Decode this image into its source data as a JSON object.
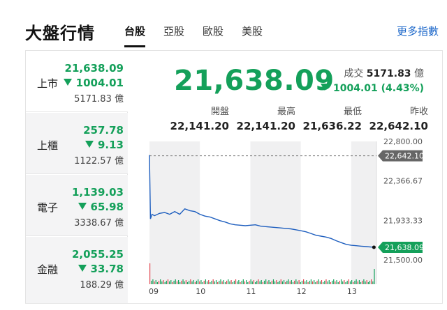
{
  "header": {
    "title": "大盤行情",
    "tabs": [
      {
        "label": "台股",
        "active": true
      },
      {
        "label": "亞股",
        "active": false
      },
      {
        "label": "歐股",
        "active": false
      },
      {
        "label": "美股",
        "active": false
      }
    ],
    "more_link": "更多指數"
  },
  "sidebar": {
    "items": [
      {
        "name": "上市",
        "value": "21,638.09",
        "change": "1004.01",
        "volume": "5171.83 億"
      },
      {
        "name": "上櫃",
        "value": "257.78",
        "change": "9.13",
        "volume": "1122.57 億"
      },
      {
        "name": "電子",
        "value": "1,139.03",
        "change": "65.98",
        "volume": "3338.67 億"
      },
      {
        "name": "金融",
        "value": "2,055.25",
        "change": "33.78",
        "volume": "188.29 億"
      }
    ]
  },
  "main": {
    "price": "21,638.09",
    "volume_label": "成交",
    "volume_value": "5171.83",
    "volume_unit": "億",
    "change": "1004.01 (4.43%)",
    "stats": [
      {
        "label": "開盤",
        "value": "22,141.20"
      },
      {
        "label": "最高",
        "value": "22,141.20"
      },
      {
        "label": "最低",
        "value": "21,636.22"
      },
      {
        "label": "昨收",
        "value": "22,642.10"
      }
    ]
  },
  "colors": {
    "down": "#14a05a",
    "line": "#1f5fbf",
    "accent": "#1a66c9",
    "up_bar": "#e0454f"
  },
  "chart_data": {
    "type": "line",
    "x_ticks": [
      "09",
      "10",
      "11",
      "12",
      "13"
    ],
    "y_ticks": [
      "22,800.00",
      "22,366.67",
      "21,933.33",
      "21,500.00"
    ],
    "ylim": [
      21500,
      22800
    ],
    "prev_close": 22642.1,
    "prev_close_label": "22,642.10",
    "last_label": "21,638.09",
    "series": [
      {
        "values": [
          [
            9.0,
            22650
          ],
          [
            9.02,
            21950
          ],
          [
            9.05,
            22000
          ],
          [
            9.1,
            21985
          ],
          [
            9.2,
            22010
          ],
          [
            9.3,
            22020
          ],
          [
            9.4,
            22000
          ],
          [
            9.5,
            22030
          ],
          [
            9.6,
            22000
          ],
          [
            9.7,
            22060
          ],
          [
            9.8,
            22040
          ],
          [
            9.9,
            22030
          ],
          [
            10.0,
            22000
          ],
          [
            10.1,
            21980
          ],
          [
            10.2,
            21970
          ],
          [
            10.3,
            21950
          ],
          [
            10.4,
            21930
          ],
          [
            10.5,
            21915
          ],
          [
            10.6,
            21895
          ],
          [
            10.7,
            21885
          ],
          [
            10.8,
            21880
          ],
          [
            10.9,
            21875
          ],
          [
            11.0,
            21880
          ],
          [
            11.1,
            21885
          ],
          [
            11.2,
            21870
          ],
          [
            11.3,
            21865
          ],
          [
            11.4,
            21860
          ],
          [
            11.5,
            21855
          ],
          [
            11.6,
            21850
          ],
          [
            11.7,
            21845
          ],
          [
            11.8,
            21840
          ],
          [
            11.9,
            21830
          ],
          [
            12.0,
            21820
          ],
          [
            12.1,
            21808
          ],
          [
            12.2,
            21790
          ],
          [
            12.3,
            21770
          ],
          [
            12.4,
            21760
          ],
          [
            12.5,
            21750
          ],
          [
            12.6,
            21735
          ],
          [
            12.7,
            21710
          ],
          [
            12.8,
            21690
          ],
          [
            12.9,
            21670
          ],
          [
            13.0,
            21660
          ],
          [
            13.1,
            21655
          ],
          [
            13.2,
            21650
          ],
          [
            13.3,
            21645
          ],
          [
            13.45,
            21638.09
          ]
        ]
      }
    ]
  }
}
